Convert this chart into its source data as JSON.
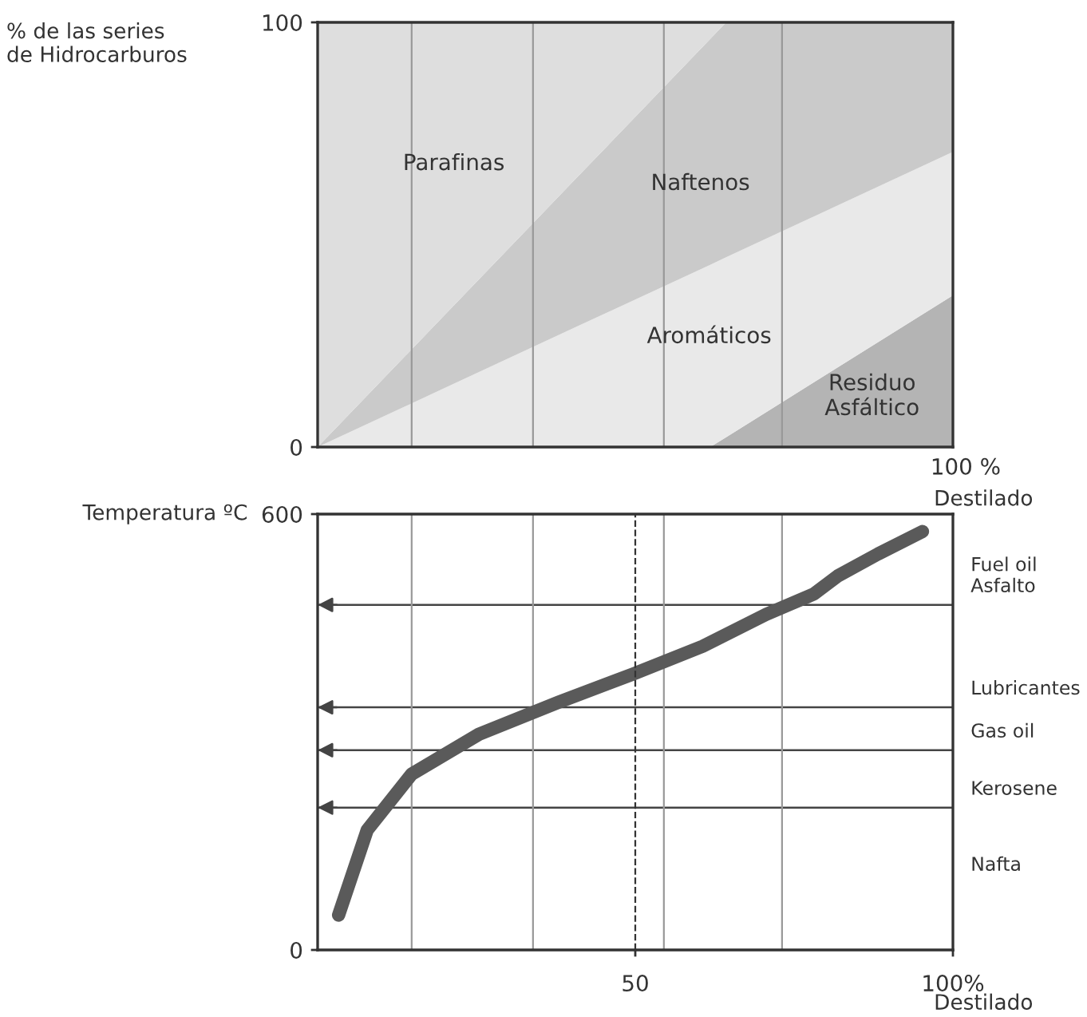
{
  "chart_data": [
    {
      "type": "area",
      "stacked": true,
      "ylabel": "% de las series\nde Hidrocarburos",
      "xlabel": "Destilado",
      "x": [
        0,
        20,
        40,
        61.8,
        64.3,
        80,
        100
      ],
      "xlim": [
        0,
        100
      ],
      "ylim": [
        0,
        100
      ],
      "tick_labels": "y",
      "yticks": [
        0,
        100
      ],
      "annotations": [
        "100 %"
      ],
      "series": [
        {
          "name": "Residuo\nAsfáltico",
          "color": "#b4b4b4",
          "values": [
            null,
            null,
            null,
            0,
            2.3,
            17.0,
            35.7
          ]
        },
        {
          "name": "Aromáticos",
          "color": "#e9e9e9",
          "values": [
            0,
            13.9,
            27.8,
            42.9,
            42.4,
            38.6,
            33.8
          ]
        },
        {
          "name": "Naftenos",
          "color": "#cacaca",
          "values": [
            0,
            17.2,
            34.4,
            53.2,
            55.3,
            44.4,
            30.5
          ]
        },
        {
          "name": "Parafinas",
          "color": "#dedede",
          "values": [
            100,
            68.9,
            37.8,
            3.9,
            0,
            null,
            null
          ]
        }
      ],
      "ref_lines": [
        {
          "axis": "x",
          "value": 14.8,
          "color": "#999999",
          "line_style": "solid"
        },
        {
          "axis": "x",
          "value": 33.9,
          "color": "#999999",
          "line_style": "solid"
        },
        {
          "axis": "x",
          "value": 54.5,
          "color": "#999999",
          "line_style": "solid"
        },
        {
          "axis": "x",
          "value": 73.1,
          "color": "#999999",
          "line_style": "solid"
        }
      ]
    },
    {
      "type": "line",
      "ylabel": "Temperatura ºC",
      "xlabel": "Destilado",
      "x": [
        3.3,
        7.8,
        14.8,
        25.4,
        37.9,
        49.7,
        60.6,
        70.6,
        78.1,
        81.9,
        88.2,
        95.2
      ],
      "xlim": [
        0,
        100
      ],
      "ylim": [
        0,
        600
      ],
      "xticks": [
        50,
        {
          "value": 100,
          "label": "100%"
        }
      ],
      "yticks": [
        0,
        600
      ],
      "series": [
        {
          "color": "#5a5a5a",
          "values": [
            48,
            165,
            242,
            297,
            341,
            380,
            418,
            462,
            490,
            515,
            545,
            576
          ]
        }
      ],
      "ref_lines": [
        {
          "axis": "x",
          "value": 14.8,
          "color": "#999999",
          "line_style": "solid"
        },
        {
          "axis": "x",
          "value": 33.9,
          "color": "#999999",
          "line_style": "solid"
        },
        {
          "axis": "x",
          "value": 54.5,
          "color": "#999999",
          "line_style": "solid"
        },
        {
          "axis": "x",
          "value": 73.1,
          "color": "#999999",
          "line_style": "solid"
        },
        {
          "axis": "x",
          "value": 50,
          "color": "#333333",
          "line_style": "dashed"
        },
        {
          "axis": "y",
          "value": 475,
          "label": "Fuel oil\nAsfalto",
          "color": "#444444"
        },
        {
          "axis": "y",
          "value": 334,
          "label": "Lubricantes",
          "color": "#444444"
        },
        {
          "axis": "y",
          "value": 275,
          "label": "Gas oil",
          "color": "#444444"
        },
        {
          "axis": "y",
          "value": 196,
          "label": "Kerosene",
          "color": "#444444"
        }
      ],
      "annotations": [
        "Nafta"
      ]
    }
  ]
}
